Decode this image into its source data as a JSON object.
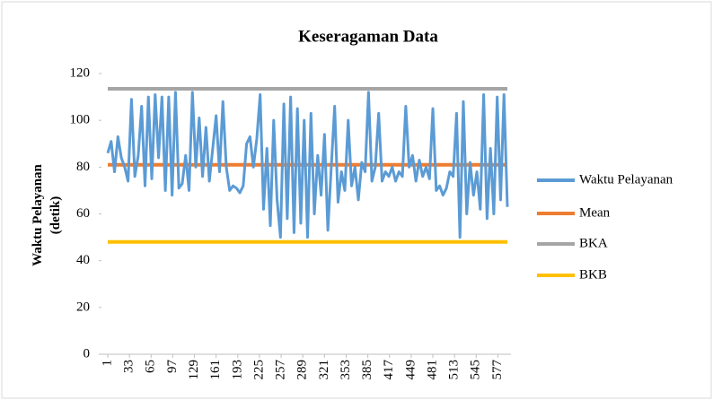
{
  "chart_data": {
    "type": "line",
    "title": "Keseragaman Data",
    "ylabel": [
      "Waktu Pelayanan",
      "(detik)"
    ],
    "xlim": [
      1,
      591
    ],
    "xticks": [
      1,
      33,
      65,
      97,
      129,
      161,
      193,
      225,
      257,
      289,
      321,
      353,
      385,
      417,
      449,
      481,
      513,
      545,
      577
    ],
    "ylim": [
      0,
      120
    ],
    "yticks": [
      0,
      20,
      40,
      60,
      80,
      100,
      120
    ],
    "legend": "right",
    "series": [
      {
        "name": "Waktu Pelayanan",
        "color": "#5b9bd5",
        "x": [
          1,
          6,
          11,
          16,
          21,
          26,
          31,
          36,
          41,
          46,
          51,
          56,
          61,
          66,
          71,
          76,
          81,
          86,
          91,
          96,
          101,
          106,
          111,
          116,
          121,
          126,
          131,
          136,
          141,
          146,
          151,
          156,
          161,
          166,
          171,
          176,
          181,
          186,
          191,
          196,
          201,
          206,
          211,
          216,
          221,
          226,
          231,
          236,
          241,
          246,
          251,
          256,
          261,
          266,
          271,
          276,
          281,
          286,
          291,
          296,
          301,
          306,
          311,
          316,
          321,
          326,
          331,
          336,
          341,
          346,
          351,
          356,
          361,
          366,
          371,
          376,
          381,
          386,
          391,
          396,
          401,
          406,
          411,
          416,
          421,
          426,
          431,
          436,
          441,
          446,
          451,
          456,
          461,
          466,
          471,
          476,
          481,
          486,
          491,
          496,
          501,
          506,
          511,
          516,
          521,
          526,
          531,
          536,
          541,
          546,
          551,
          556,
          561,
          566,
          571,
          576,
          581,
          586,
          591
        ],
        "values": [
          86,
          91,
          78,
          93,
          84,
          80,
          74,
          109,
          76,
          85,
          106,
          72,
          110,
          75,
          111,
          84,
          110,
          70,
          110,
          68,
          112,
          71,
          73,
          85,
          70,
          112,
          80,
          101,
          76,
          97,
          74,
          88,
          102,
          78,
          108,
          80,
          70,
          72,
          71,
          69,
          72,
          90,
          93,
          80,
          92,
          111,
          62,
          88,
          55,
          100,
          66,
          50,
          107,
          58,
          110,
          52,
          105,
          56,
          100,
          50,
          103,
          60,
          85,
          68,
          94,
          53,
          80,
          106,
          65,
          78,
          70,
          100,
          72,
          80,
          66,
          82,
          78,
          112,
          74,
          80,
          103,
          74,
          78,
          76,
          80,
          74,
          78,
          76,
          106,
          80,
          85,
          74,
          83,
          76,
          80,
          75,
          105,
          70,
          72,
          68,
          71,
          78,
          76,
          103,
          50,
          108,
          60,
          82,
          68,
          78,
          62,
          111,
          58,
          88,
          60,
          110,
          66,
          111,
          63
        ]
      },
      {
        "name": "Mean",
        "color": "#ed7d31",
        "x": [
          1,
          591
        ],
        "values": [
          81,
          81
        ]
      },
      {
        "name": "BKA",
        "color": "#a5a5a5",
        "x": [
          1,
          591
        ],
        "values": [
          113.5,
          113.5
        ]
      },
      {
        "name": "BKB",
        "color": "#ffc000",
        "x": [
          1,
          591
        ],
        "values": [
          48,
          48
        ]
      }
    ]
  }
}
